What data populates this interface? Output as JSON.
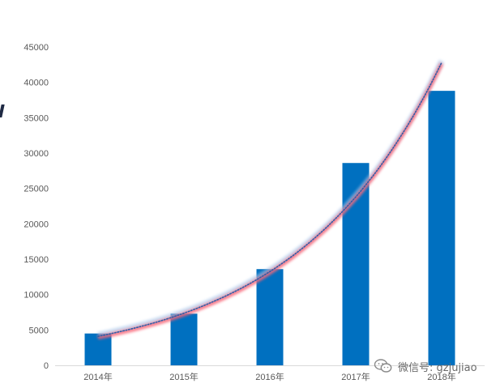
{
  "chart_data": {
    "type": "bar",
    "categories": [
      "2014年",
      "2015年",
      "2016年",
      "2017年",
      "2018年"
    ],
    "values": [
      4500,
      7300,
      13600,
      28600,
      38800
    ],
    "ylim": [
      0,
      45000
    ],
    "yticks": [
      0,
      5000,
      10000,
      15000,
      20000,
      25000,
      30000,
      35000,
      40000,
      45000
    ],
    "trendline": {
      "type": "exponential",
      "values": [
        4100,
        7400,
        13300,
        23900,
        42800
      ]
    },
    "grid": false,
    "colors": {
      "bar": "#0070C0",
      "trend_dots": "#2f5fa8",
      "trend_glow_red": "#ff5a6a",
      "trend_glow_blue": "#a8c4e8"
    }
  },
  "watermark": {
    "icon": "wechat-icon",
    "text": "微信号: gzjujiao"
  }
}
